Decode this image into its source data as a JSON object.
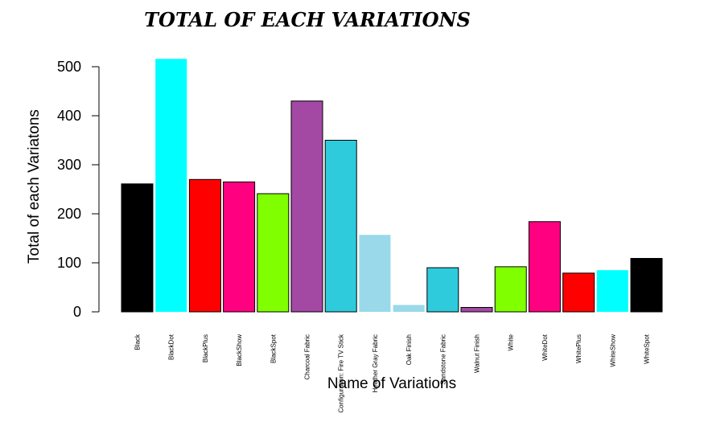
{
  "chart_data": {
    "type": "bar",
    "title": "TOTAL OF EACH VARIATIONS",
    "xlabel": "Name of Variations",
    "ylabel": "Total of each Variatons",
    "ylim": [
      0,
      500
    ],
    "yticks": [
      "0",
      "100",
      "200",
      "300",
      "400",
      "500"
    ],
    "categories": [
      "Black",
      "BlackDot",
      "BlackPlus",
      "BlackShow",
      "BlackSpot",
      "Charcoal Fabric",
      "Configuration: Fire TV Stick",
      "Heather Gray Fabric",
      "Oak Finish",
      "Sandstone Fabric",
      "Walnut Finish",
      "White",
      "WhiteDot",
      "WhitePlus",
      "WhiteShow",
      "WhiteSpot"
    ],
    "values": [
      261,
      516,
      270,
      265,
      241,
      430,
      350,
      157,
      14,
      90,
      9,
      92,
      184,
      79,
      85,
      109
    ],
    "colors": [
      "#000000",
      "#00ffff",
      "#ff0000",
      "#ff0080",
      "#80ff00",
      "#a349a4",
      "#2ecbdc",
      "#99d9ea",
      "#99d9ea",
      "#2ecbdc",
      "#a349a4",
      "#80ff00",
      "#ff0080",
      "#ff0000",
      "#00ffff",
      "#000000"
    ],
    "legend": "none",
    "grid": false
  }
}
